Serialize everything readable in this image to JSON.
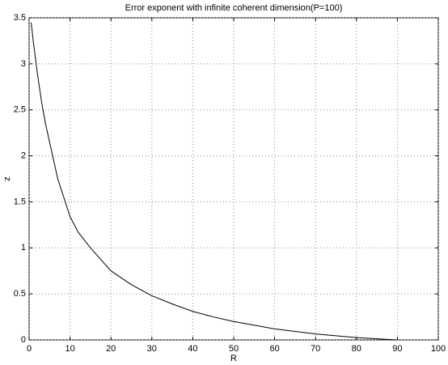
{
  "chart_data": {
    "type": "line",
    "title": "Error exponent with infinite coherent dimension(P=100)",
    "x_label": "R",
    "y_label": "z",
    "x": [
      0.5,
      1,
      2,
      3,
      4,
      5,
      7,
      10,
      12,
      15,
      20,
      25,
      30,
      35,
      40,
      45,
      50,
      60,
      70,
      80,
      85,
      90
    ],
    "series": [
      {
        "name": "z",
        "color": "#000000",
        "values": [
          3.45,
          3.25,
          2.9,
          2.6,
          2.35,
          2.15,
          1.75,
          1.34,
          1.17,
          1.0,
          0.75,
          0.6,
          0.48,
          0.39,
          0.31,
          0.25,
          0.2,
          0.12,
          0.065,
          0.025,
          0.012,
          0
        ]
      }
    ],
    "xlim": [
      0,
      100
    ],
    "xticks": [
      0,
      10,
      20,
      30,
      40,
      50,
      60,
      70,
      80,
      90,
      100
    ],
    "ylim": [
      0,
      3.5
    ],
    "yticks": [
      0,
      0.5,
      1,
      1.5,
      2,
      2.5,
      3,
      3.5
    ],
    "grid": true
  }
}
